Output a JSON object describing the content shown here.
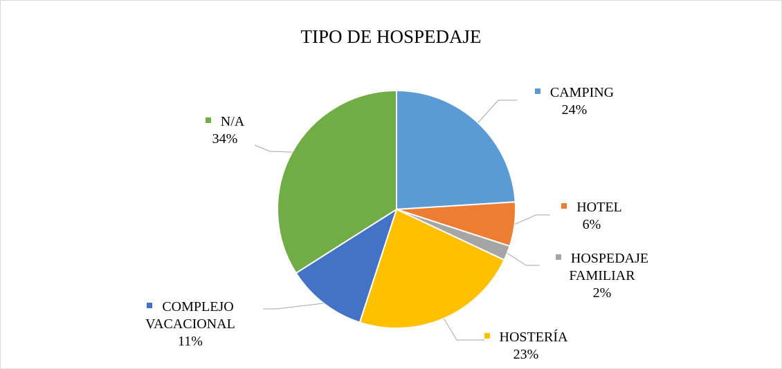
{
  "chart_data": {
    "type": "pie",
    "title": "TIPO DE HOSPEDAJE",
    "categories": [
      "CAMPING",
      "HOTEL",
      "HOSPEDAJE FAMILIAR",
      "HOSTERÍA",
      "COMPLEJO VACACIONAL",
      "N/A"
    ],
    "values": [
      24,
      6,
      2,
      23,
      11,
      34
    ],
    "value_labels": [
      "24%",
      "6%",
      "2%",
      "23%",
      "11%",
      "34%"
    ],
    "colors": [
      "#5b9bd5",
      "#ed7d31",
      "#a5a5a5",
      "#ffc000",
      "#4472c4",
      "#70ad47"
    ]
  }
}
